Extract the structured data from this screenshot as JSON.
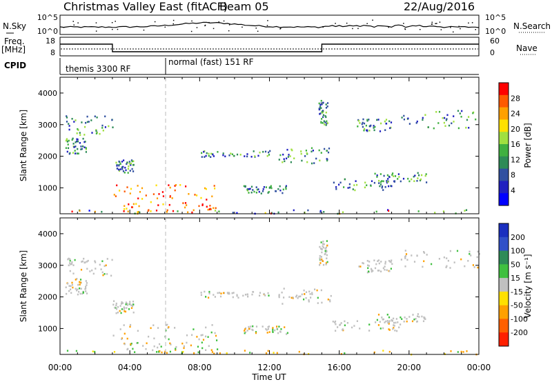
{
  "header": {
    "station": "Christmas Valley East (fitACF)",
    "beam": "Beam 05",
    "date": "22/Aug/2016"
  },
  "top_panels": {
    "nsky_label": "N.Sky",
    "nsky_ticks": [
      "10^5",
      "10^0"
    ],
    "nsearch_label": "N.Search",
    "nsearch_ticks": [
      "10^5",
      "10^0"
    ],
    "freq_label": "Freq.",
    "freq_unit": "[MHz]",
    "freq_ticks": [
      "18",
      "8"
    ],
    "nave_label": "Nave",
    "nave_ticks": [
      "60",
      "0"
    ],
    "cpid_label": "CPID",
    "cpid_segments": [
      {
        "label": "themis 3300 RF",
        "start_hour": 0,
        "end_hour": 6
      },
      {
        "label": "normal (fast) 151 RF",
        "start_hour": 6,
        "end_hour": 24
      }
    ],
    "freq_steps": [
      {
        "start_hour": 0,
        "end_hour": 3,
        "level": "high"
      },
      {
        "start_hour": 3,
        "end_hour": 15,
        "level": "low"
      },
      {
        "start_hour": 15,
        "end_hour": 24,
        "level": "high"
      }
    ]
  },
  "chart_data": [
    {
      "type": "heatmap",
      "name": "power",
      "ylabel": "Slant Range [km]",
      "xlabel": "Time UT",
      "xlim_hours": [
        0,
        24
      ],
      "ylim": [
        180,
        4500
      ],
      "yticks": [
        1000,
        2000,
        3000,
        4000
      ],
      "xtick_labels": [
        "00:00",
        "04:00",
        "08:00",
        "12:00",
        "16:00",
        "20:00",
        "00:00"
      ],
      "colorbar": {
        "label": "Power [dB]",
        "ticks": [
          "28",
          "24",
          "20",
          "16",
          "12",
          "8",
          "4"
        ],
        "colors": [
          "#ff0000",
          "#ff5a00",
          "#ffa000",
          "#ffe000",
          "#a0e040",
          "#40b040",
          "#2e8b57",
          "#3050a0",
          "#2020c0",
          "#0000ff"
        ]
      }
    },
    {
      "type": "heatmap",
      "name": "velocity",
      "ylabel": "Slant Range [km]",
      "xlabel": "Time UT",
      "xlim_hours": [
        0,
        24
      ],
      "ylim": [
        180,
        4500
      ],
      "yticks": [
        1000,
        2000,
        3000,
        4000
      ],
      "xtick_labels": [
        "00:00",
        "04:00",
        "08:00",
        "12:00",
        "16:00",
        "20:00",
        "00:00"
      ],
      "colorbar": {
        "label": "Velocity [m s⁻¹]",
        "ticks": [
          "200",
          "100",
          "50",
          "15",
          "-15",
          "-50",
          "-100",
          "-200"
        ],
        "colors": [
          "#1a2fbf",
          "#3050c8",
          "#2e8b57",
          "#40c040",
          "#c0c0c0",
          "#ffe000",
          "#ffa000",
          "#ff6000",
          "#ff2000"
        ]
      }
    }
  ],
  "scatter_regions": [
    {
      "h0": 0.2,
      "h1": 3.0,
      "r0": 2700,
      "r1": 3300
    },
    {
      "h0": 0.3,
      "h1": 1.5,
      "r0": 2100,
      "r1": 2600
    },
    {
      "h0": 3.0,
      "h1": 4.2,
      "r0": 1500,
      "r1": 1900
    },
    {
      "h0": 3.0,
      "h1": 9.0,
      "r0": 650,
      "r1": 1150
    },
    {
      "h0": 3.5,
      "h1": 9.0,
      "r0": 250,
      "r1": 600
    },
    {
      "h0": 0.0,
      "h1": 24.0,
      "r0": 200,
      "r1": 330
    },
    {
      "h0": 10.5,
      "h1": 13.0,
      "r0": 850,
      "r1": 1100
    },
    {
      "h0": 12.5,
      "h1": 15.5,
      "r0": 1800,
      "r1": 2300
    },
    {
      "h0": 8.0,
      "h1": 12.0,
      "r0": 2000,
      "r1": 2200
    },
    {
      "h0": 15.5,
      "h1": 19.5,
      "r0": 950,
      "r1": 1300
    },
    {
      "h0": 18.0,
      "h1": 21.0,
      "r0": 1200,
      "r1": 1500
    },
    {
      "h0": 17.0,
      "h1": 19.0,
      "r0": 2800,
      "r1": 3200
    },
    {
      "h0": 19.5,
      "h1": 24.0,
      "r0": 2900,
      "r1": 3500
    },
    {
      "h0": 14.8,
      "h1": 15.3,
      "r0": 3000,
      "r1": 3800
    }
  ]
}
